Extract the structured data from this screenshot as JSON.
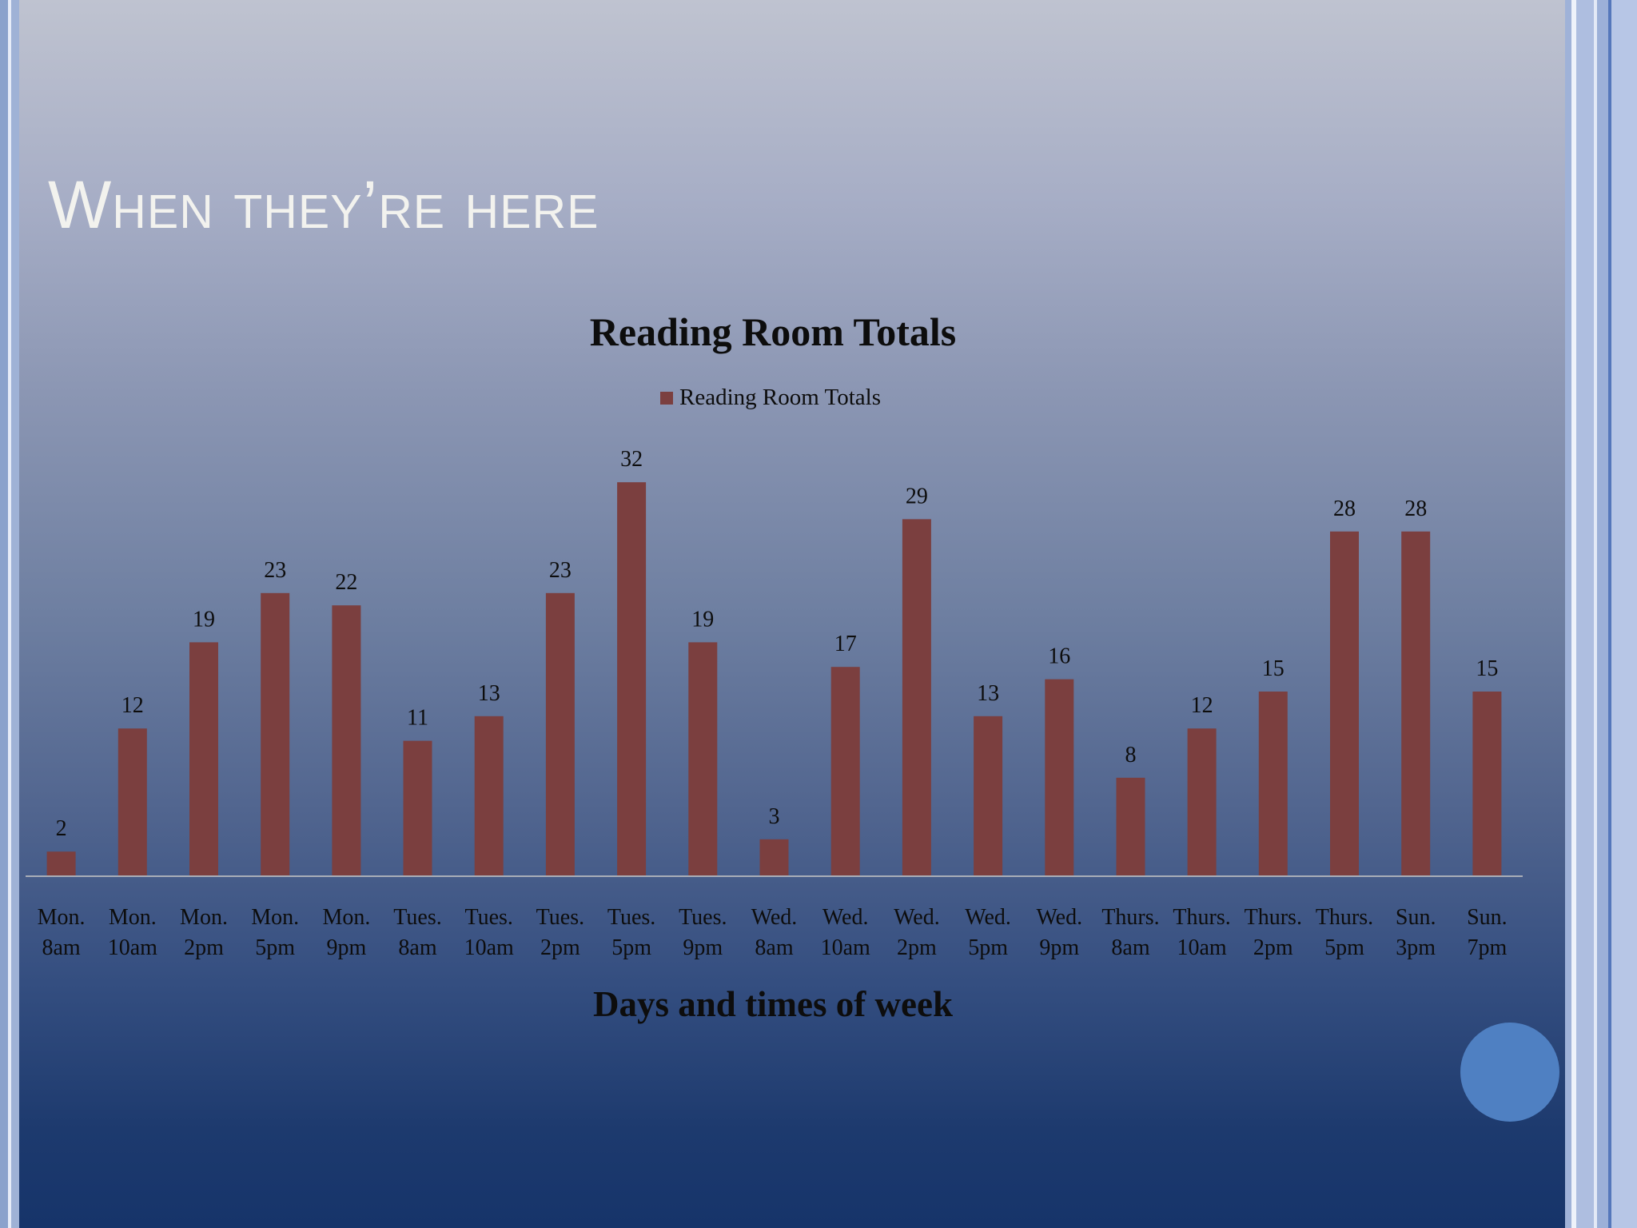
{
  "slide": {
    "title": "When they’re here"
  },
  "colors": {
    "bar": "#7b3f3f",
    "text": "#0d0d0d",
    "axis": "#a9aeb8"
  },
  "chart_data": {
    "type": "bar",
    "title": "Reading Room Totals",
    "xlabel": "Days and times of week",
    "ylabel": "",
    "legend": {
      "position": "top",
      "entries": [
        "Reading Room Totals"
      ]
    },
    "grid": false,
    "ylim": [
      0,
      34
    ],
    "categories": [
      [
        "Mon.",
        "8am"
      ],
      [
        "Mon.",
        "10am"
      ],
      [
        "Mon.",
        "2pm"
      ],
      [
        "Mon.",
        "5pm"
      ],
      [
        "Mon.",
        "9pm"
      ],
      [
        "Tues.",
        "8am"
      ],
      [
        "Tues.",
        "10am"
      ],
      [
        "Tues.",
        "2pm"
      ],
      [
        "Tues.",
        "5pm"
      ],
      [
        "Tues.",
        "9pm"
      ],
      [
        "Wed.",
        "8am"
      ],
      [
        "Wed.",
        "10am"
      ],
      [
        "Wed.",
        "2pm"
      ],
      [
        "Wed.",
        "5pm"
      ],
      [
        "Wed.",
        "9pm"
      ],
      [
        "Thurs.",
        "8am"
      ],
      [
        "Thurs.",
        "10am"
      ],
      [
        "Thurs.",
        "2pm"
      ],
      [
        "Thurs.",
        "5pm"
      ],
      [
        "Sun.",
        "3pm"
      ],
      [
        "Sun.",
        "7pm"
      ]
    ],
    "series": [
      {
        "name": "Reading Room Totals",
        "values": [
          2,
          12,
          19,
          23,
          22,
          11,
          13,
          23,
          32,
          19,
          3,
          17,
          29,
          13,
          16,
          8,
          12,
          15,
          28,
          28,
          15
        ]
      }
    ]
  }
}
